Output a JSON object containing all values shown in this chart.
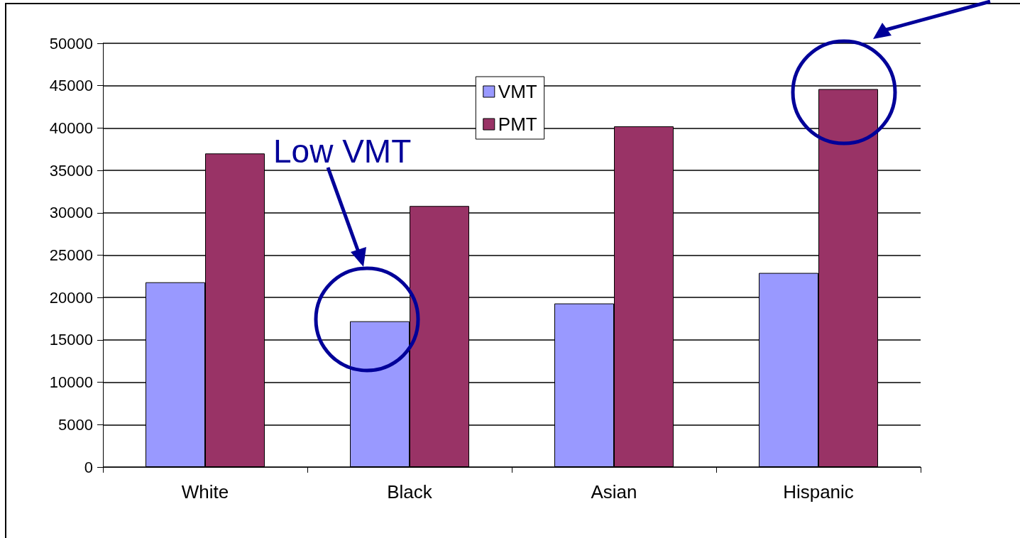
{
  "chart_data": {
    "type": "bar",
    "categories": [
      "White",
      "Black",
      "Asian",
      "Hispanic"
    ],
    "series": [
      {
        "name": "VMT",
        "color": "#9999ff",
        "values": [
          21800,
          17200,
          19300,
          22900
        ]
      },
      {
        "name": "PMT",
        "color": "#993366",
        "values": [
          37000,
          30800,
          40200,
          44600
        ]
      }
    ],
    "ylim": [
      0,
      50000
    ],
    "yticks": [
      0,
      5000,
      10000,
      15000,
      20000,
      25000,
      30000,
      35000,
      40000,
      45000,
      50000
    ],
    "grid": "y",
    "legend": "top",
    "annotations": [
      "Low VMT"
    ]
  }
}
